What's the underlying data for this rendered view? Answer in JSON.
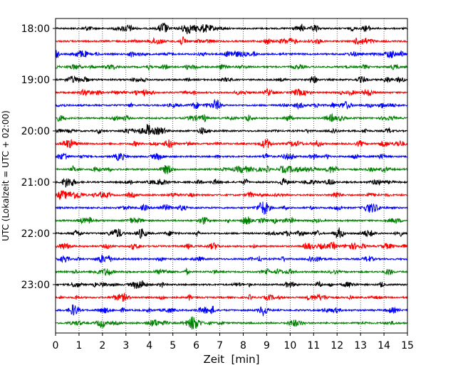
{
  "chart_data": {
    "type": "line",
    "title": "",
    "xlabel": "Zeit  [min]",
    "ylabel": "UTC (Lokalzeit = UTC + 02:00)",
    "xlim": [
      0,
      15
    ],
    "x_ticks": [
      "0",
      "1",
      "2",
      "3",
      "4",
      "5",
      "6",
      "7",
      "8",
      "9",
      "10",
      "11",
      "12",
      "13",
      "14",
      "15"
    ],
    "y_ticks": [
      "18:00",
      "19:00",
      "20:00",
      "21:00",
      "22:00",
      "23:00"
    ],
    "grid": "vertical dotted at each minute",
    "trace_interval_min": 15,
    "start_time": "18:00",
    "colors": [
      "#000000",
      "#ff0000",
      "#0000ff",
      "#008000"
    ],
    "series": [
      {
        "start": "18:00",
        "color": "#000000"
      },
      {
        "start": "18:15",
        "color": "#ff0000"
      },
      {
        "start": "18:30",
        "color": "#0000ff"
      },
      {
        "start": "18:45",
        "color": "#008000"
      },
      {
        "start": "19:00",
        "color": "#000000"
      },
      {
        "start": "19:15",
        "color": "#ff0000"
      },
      {
        "start": "19:30",
        "color": "#0000ff"
      },
      {
        "start": "19:45",
        "color": "#008000"
      },
      {
        "start": "20:00",
        "color": "#000000"
      },
      {
        "start": "20:15",
        "color": "#ff0000"
      },
      {
        "start": "20:30",
        "color": "#0000ff"
      },
      {
        "start": "20:45",
        "color": "#008000"
      },
      {
        "start": "21:00",
        "color": "#000000"
      },
      {
        "start": "21:15",
        "color": "#ff0000"
      },
      {
        "start": "21:30",
        "color": "#0000ff"
      },
      {
        "start": "21:45",
        "color": "#008000"
      },
      {
        "start": "22:00",
        "color": "#000000"
      },
      {
        "start": "22:15",
        "color": "#ff0000"
      },
      {
        "start": "22:30",
        "color": "#0000ff"
      },
      {
        "start": "22:45",
        "color": "#008000"
      },
      {
        "start": "23:00",
        "color": "#000000"
      },
      {
        "start": "23:15",
        "color": "#ff0000"
      },
      {
        "start": "23:30",
        "color": "#0000ff"
      },
      {
        "start": "23:45",
        "color": "#008000"
      }
    ]
  }
}
